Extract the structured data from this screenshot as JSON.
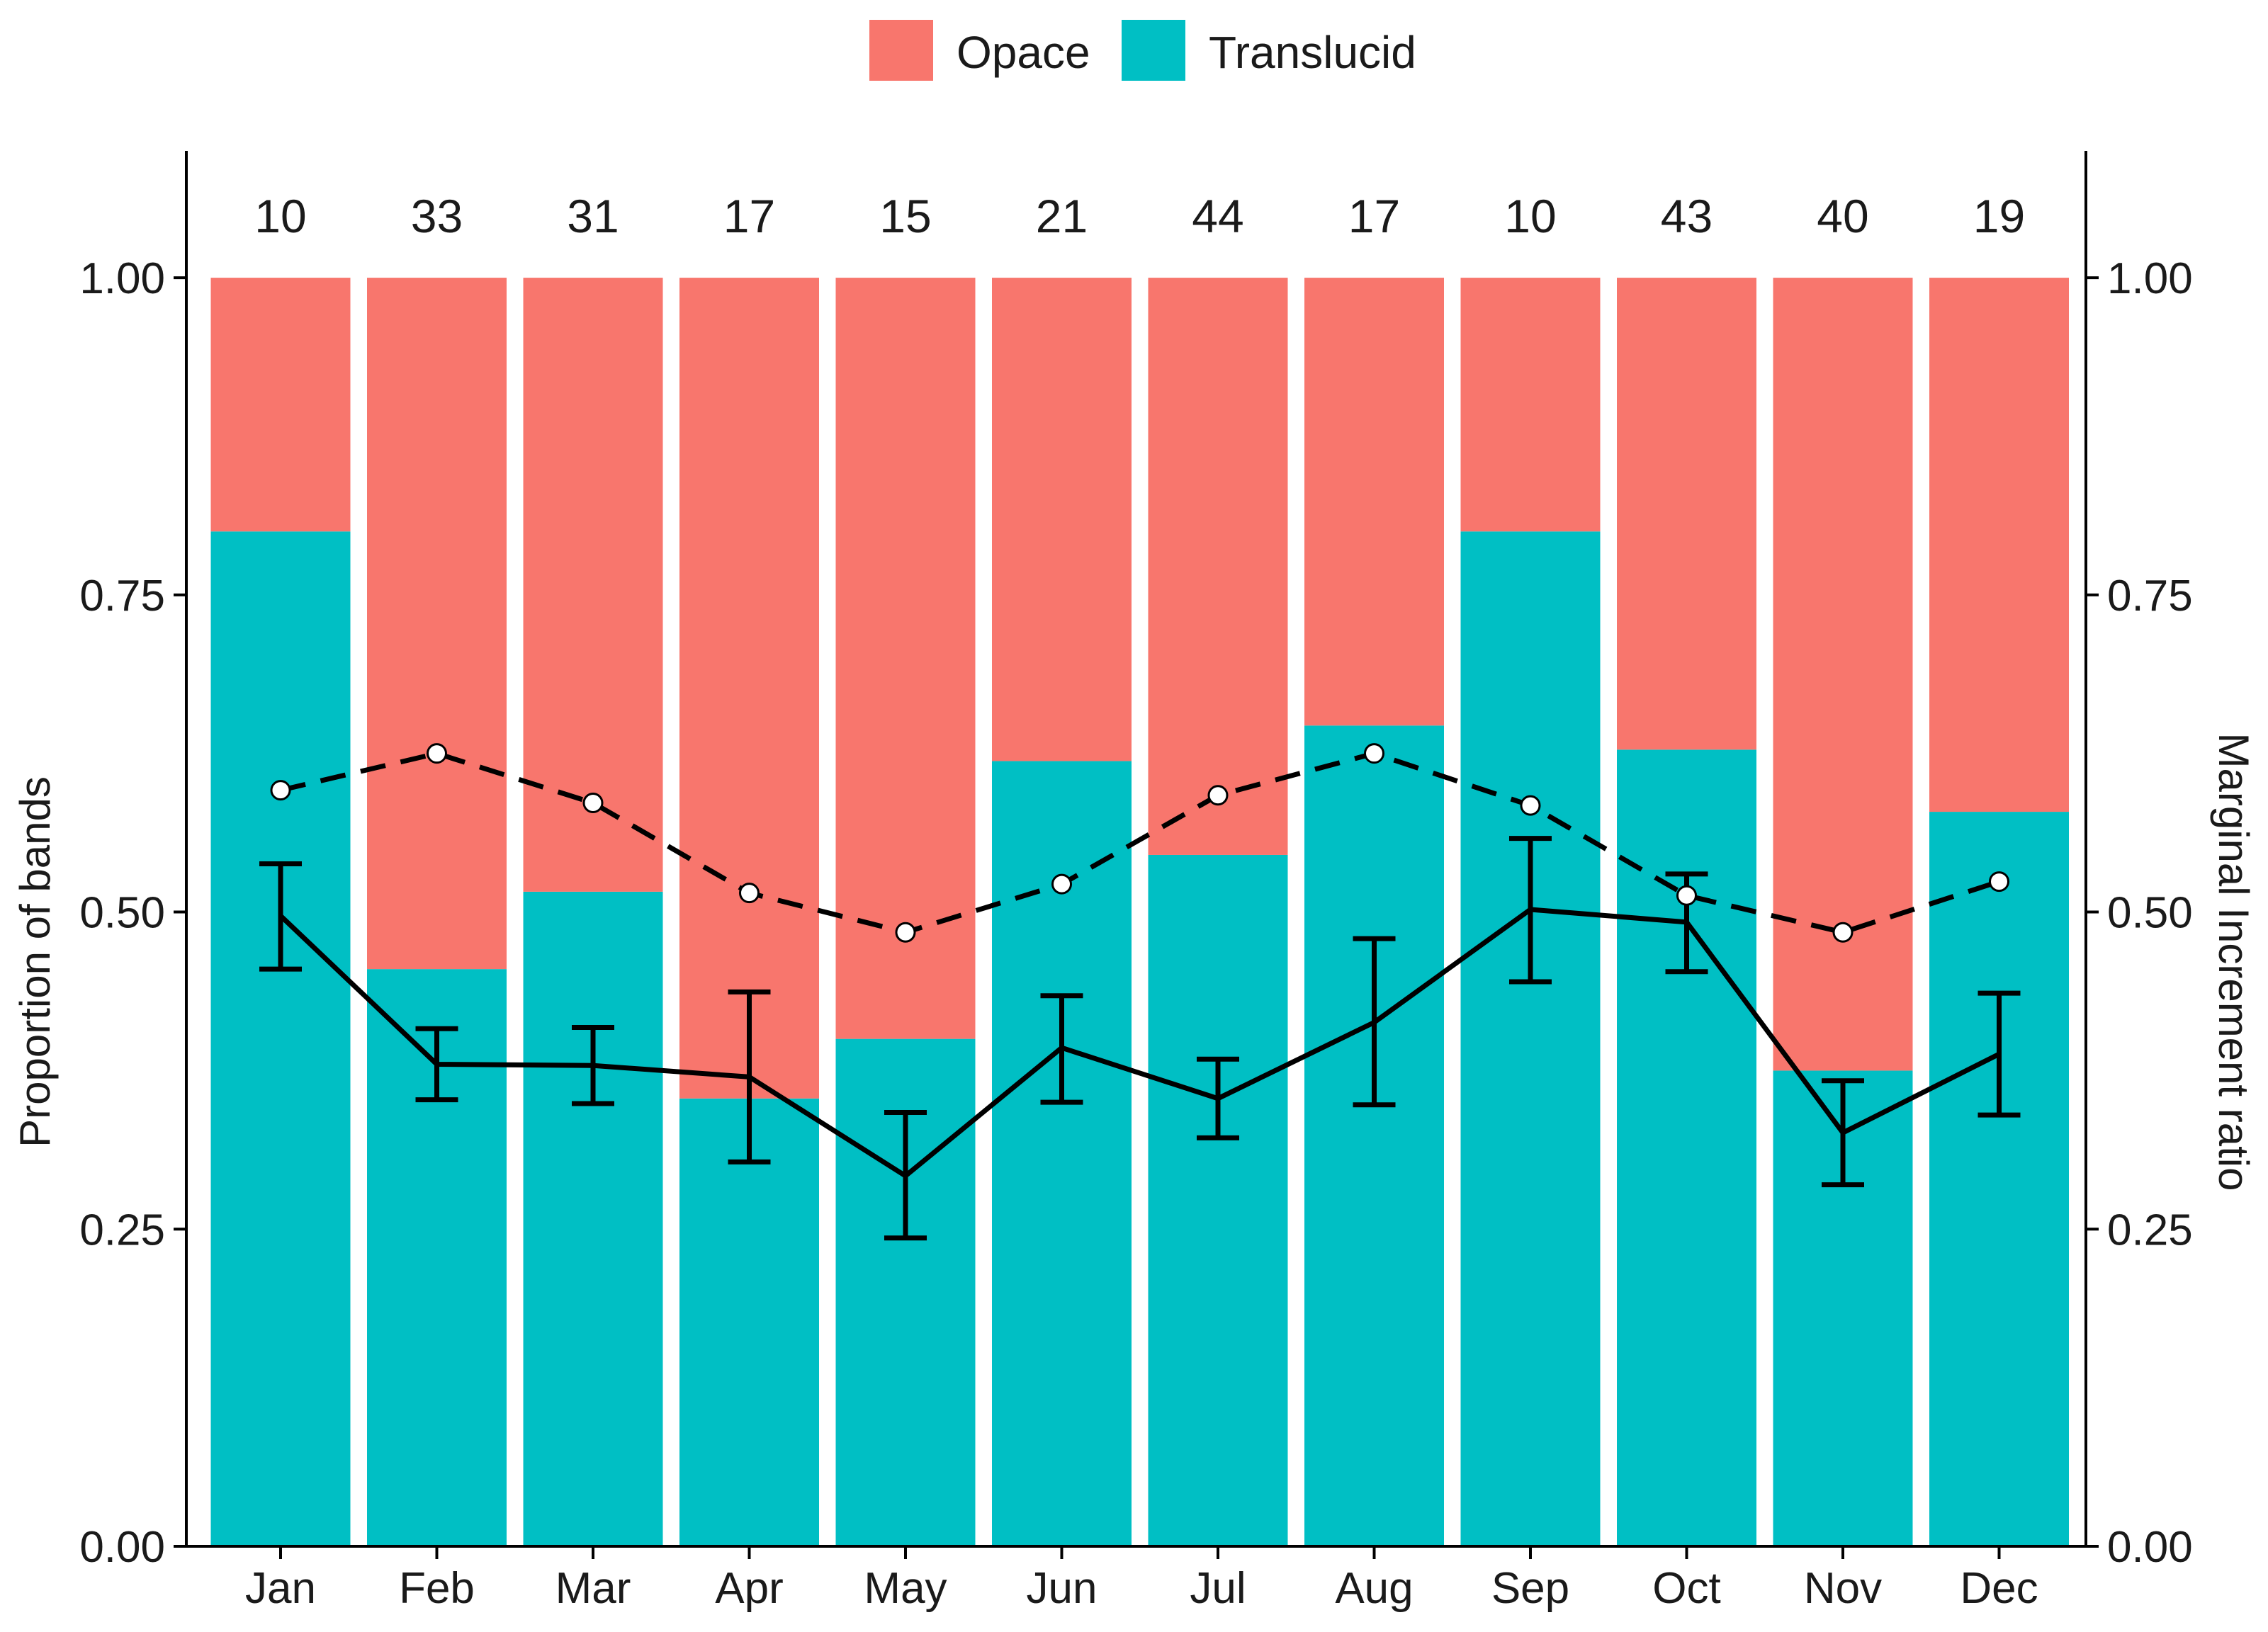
{
  "chart_data": {
    "type": "bar",
    "stacked": true,
    "categories": [
      "Jan",
      "Feb",
      "Mar",
      "Apr",
      "May",
      "Jun",
      "Jul",
      "Aug",
      "Sep",
      "Oct",
      "Nov",
      "Dec"
    ],
    "sample_sizes": [
      "10",
      "33",
      "31",
      "17",
      "15",
      "21",
      "44",
      "17",
      "10",
      "43",
      "40",
      "19"
    ],
    "series": [
      {
        "name": "Translucid",
        "color": "#00BFC4",
        "values": [
          0.8,
          0.455,
          0.516,
          0.353,
          0.4,
          0.619,
          0.545,
          0.647,
          0.8,
          0.628,
          0.375,
          0.579
        ]
      },
      {
        "name": "Opace",
        "color": "#F8766D",
        "values": [
          0.2,
          0.545,
          0.484,
          0.647,
          0.6,
          0.381,
          0.455,
          0.353,
          0.2,
          0.372,
          0.625,
          0.421
        ]
      }
    ],
    "marginal_increment": {
      "name": "Marginal Increment ratio",
      "line_style": "solid",
      "means": [
        0.497,
        0.38,
        0.379,
        0.37,
        0.292,
        0.393,
        0.353,
        0.413,
        0.502,
        0.492,
        0.326,
        0.388
      ],
      "error_low": [
        0.455,
        0.352,
        0.349,
        0.303,
        0.243,
        0.35,
        0.322,
        0.348,
        0.445,
        0.453,
        0.285,
        0.34
      ],
      "error_high": [
        0.538,
        0.408,
        0.409,
        0.437,
        0.342,
        0.434,
        0.384,
        0.479,
        0.558,
        0.53,
        0.367,
        0.436
      ]
    },
    "dashed_reference": {
      "line_style": "dashed",
      "marker": "open-circle",
      "values": [
        0.596,
        0.625,
        0.586,
        0.515,
        0.484,
        0.522,
        0.592,
        0.625,
        0.584,
        0.513,
        0.484,
        0.524
      ]
    },
    "title": "",
    "xlabel": "",
    "ylabel": "Proportion of bands",
    "y2label": "Marginal Increment ratio",
    "ylim": [
      0,
      1.1
    ],
    "yticks": [
      "0.00",
      "0.25",
      "0.50",
      "0.75",
      "1.00"
    ],
    "y2ticks": [
      "0.00",
      "0.25",
      "0.50",
      "0.75",
      "1.00"
    ],
    "legend": {
      "position": "top",
      "entries": [
        {
          "label": "Opace",
          "color": "#F8766D"
        },
        {
          "label": "Translucid",
          "color": "#00BFC4"
        }
      ]
    },
    "grid": false
  }
}
